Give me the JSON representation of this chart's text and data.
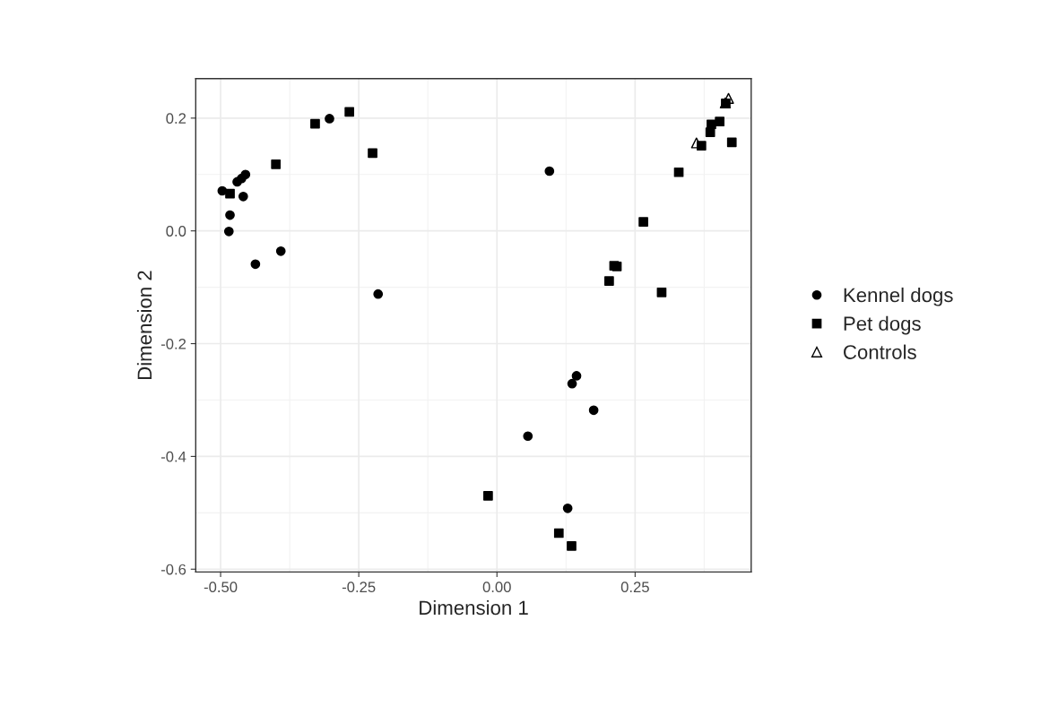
{
  "chart_data": {
    "type": "scatter",
    "xlabel": "Dimension 1",
    "ylabel": "Dimension 2",
    "xlim": [
      -0.545,
      0.46
    ],
    "ylim": [
      -0.605,
      0.27
    ],
    "xticks": [
      {
        "value": -0.5,
        "label": "-0.50"
      },
      {
        "value": -0.25,
        "label": "-0.25"
      },
      {
        "value": 0,
        "label": "0.00"
      },
      {
        "value": 0.25,
        "label": "0.25"
      }
    ],
    "yticks": [
      {
        "value": -0.6,
        "label": "-0.6"
      },
      {
        "value": -0.4,
        "label": "-0.4"
      },
      {
        "value": -0.2,
        "label": "-0.2"
      },
      {
        "value": 0,
        "label": "0.0"
      },
      {
        "value": 0.2,
        "label": "0.2"
      }
    ],
    "grid": true,
    "legend": "right",
    "series": [
      {
        "name": "Kennel dogs",
        "color": "#000000",
        "marker": "circle",
        "x": [
          -0.497,
          -0.47,
          -0.462,
          -0.455,
          -0.459,
          -0.483,
          -0.485,
          -0.437,
          -0.391,
          -0.303,
          -0.215,
          0.095,
          0.144,
          0.136,
          0.175,
          0.056,
          0.128
        ],
        "values": [
          0.071,
          0.087,
          0.093,
          0.1,
          0.061,
          0.028,
          -0.001,
          -0.059,
          -0.036,
          0.199,
          -0.112,
          0.106,
          -0.257,
          -0.271,
          -0.318,
          -0.364,
          -0.492
        ]
      },
      {
        "name": "Pet dogs",
        "color": "#000000",
        "marker": "square",
        "x": [
          -0.483,
          -0.4,
          -0.329,
          -0.267,
          -0.225,
          0.329,
          0.265,
          0.212,
          0.217,
          0.203,
          0.298,
          0.37,
          0.386,
          0.388,
          0.403,
          0.425,
          0.414,
          -0.016,
          0.112,
          0.135
        ],
        "values": [
          0.066,
          0.118,
          0.19,
          0.211,
          0.138,
          0.104,
          0.016,
          -0.062,
          -0.063,
          -0.089,
          -0.109,
          0.151,
          0.175,
          0.189,
          0.194,
          0.157,
          0.226,
          -0.47,
          -0.536,
          -0.559
        ]
      },
      {
        "name": "Controls",
        "color": "#000000",
        "marker": "triangle",
        "x": [
          0.361,
          0.419,
          0.413
        ],
        "values": [
          0.156,
          0.235,
          0.227
        ]
      }
    ]
  }
}
